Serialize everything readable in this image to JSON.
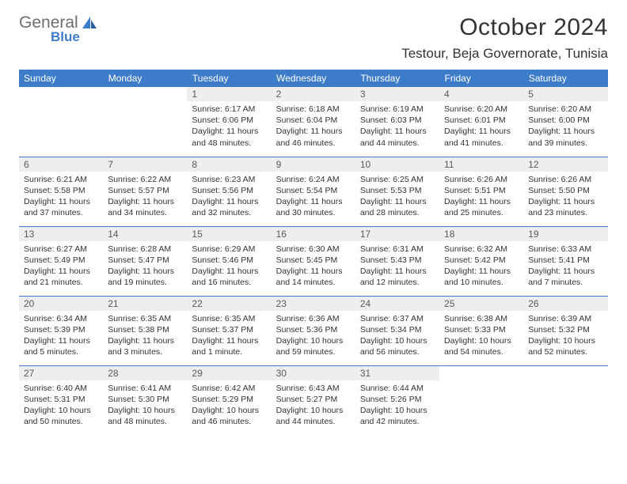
{
  "logo": {
    "line1": "General",
    "line2": "Blue"
  },
  "header": {
    "title": "October 2024",
    "location": "Testour, Beja Governorate, Tunisia"
  },
  "colors": {
    "header_bg": "#3d7cc9",
    "header_text": "#ffffff",
    "daynum_bg": "#eeeeee",
    "page_bg": "#ffffff",
    "text": "#333333",
    "logo_gray": "#6d6e71",
    "logo_blue": "#3d7cc9",
    "row_border": "#3d7cc9"
  },
  "weekdays": [
    "Sunday",
    "Monday",
    "Tuesday",
    "Wednesday",
    "Thursday",
    "Friday",
    "Saturday"
  ],
  "weeks": [
    [
      null,
      null,
      {
        "n": "1",
        "sr": "6:17 AM",
        "ss": "6:06 PM",
        "dl": "11 hours and 48 minutes."
      },
      {
        "n": "2",
        "sr": "6:18 AM",
        "ss": "6:04 PM",
        "dl": "11 hours and 46 minutes."
      },
      {
        "n": "3",
        "sr": "6:19 AM",
        "ss": "6:03 PM",
        "dl": "11 hours and 44 minutes."
      },
      {
        "n": "4",
        "sr": "6:20 AM",
        "ss": "6:01 PM",
        "dl": "11 hours and 41 minutes."
      },
      {
        "n": "5",
        "sr": "6:20 AM",
        "ss": "6:00 PM",
        "dl": "11 hours and 39 minutes."
      }
    ],
    [
      {
        "n": "6",
        "sr": "6:21 AM",
        "ss": "5:58 PM",
        "dl": "11 hours and 37 minutes."
      },
      {
        "n": "7",
        "sr": "6:22 AM",
        "ss": "5:57 PM",
        "dl": "11 hours and 34 minutes."
      },
      {
        "n": "8",
        "sr": "6:23 AM",
        "ss": "5:56 PM",
        "dl": "11 hours and 32 minutes."
      },
      {
        "n": "9",
        "sr": "6:24 AM",
        "ss": "5:54 PM",
        "dl": "11 hours and 30 minutes."
      },
      {
        "n": "10",
        "sr": "6:25 AM",
        "ss": "5:53 PM",
        "dl": "11 hours and 28 minutes."
      },
      {
        "n": "11",
        "sr": "6:26 AM",
        "ss": "5:51 PM",
        "dl": "11 hours and 25 minutes."
      },
      {
        "n": "12",
        "sr": "6:26 AM",
        "ss": "5:50 PM",
        "dl": "11 hours and 23 minutes."
      }
    ],
    [
      {
        "n": "13",
        "sr": "6:27 AM",
        "ss": "5:49 PM",
        "dl": "11 hours and 21 minutes."
      },
      {
        "n": "14",
        "sr": "6:28 AM",
        "ss": "5:47 PM",
        "dl": "11 hours and 19 minutes."
      },
      {
        "n": "15",
        "sr": "6:29 AM",
        "ss": "5:46 PM",
        "dl": "11 hours and 16 minutes."
      },
      {
        "n": "16",
        "sr": "6:30 AM",
        "ss": "5:45 PM",
        "dl": "11 hours and 14 minutes."
      },
      {
        "n": "17",
        "sr": "6:31 AM",
        "ss": "5:43 PM",
        "dl": "11 hours and 12 minutes."
      },
      {
        "n": "18",
        "sr": "6:32 AM",
        "ss": "5:42 PM",
        "dl": "11 hours and 10 minutes."
      },
      {
        "n": "19",
        "sr": "6:33 AM",
        "ss": "5:41 PM",
        "dl": "11 hours and 7 minutes."
      }
    ],
    [
      {
        "n": "20",
        "sr": "6:34 AM",
        "ss": "5:39 PM",
        "dl": "11 hours and 5 minutes."
      },
      {
        "n": "21",
        "sr": "6:35 AM",
        "ss": "5:38 PM",
        "dl": "11 hours and 3 minutes."
      },
      {
        "n": "22",
        "sr": "6:35 AM",
        "ss": "5:37 PM",
        "dl": "11 hours and 1 minute."
      },
      {
        "n": "23",
        "sr": "6:36 AM",
        "ss": "5:36 PM",
        "dl": "10 hours and 59 minutes."
      },
      {
        "n": "24",
        "sr": "6:37 AM",
        "ss": "5:34 PM",
        "dl": "10 hours and 56 minutes."
      },
      {
        "n": "25",
        "sr": "6:38 AM",
        "ss": "5:33 PM",
        "dl": "10 hours and 54 minutes."
      },
      {
        "n": "26",
        "sr": "6:39 AM",
        "ss": "5:32 PM",
        "dl": "10 hours and 52 minutes."
      }
    ],
    [
      {
        "n": "27",
        "sr": "6:40 AM",
        "ss": "5:31 PM",
        "dl": "10 hours and 50 minutes."
      },
      {
        "n": "28",
        "sr": "6:41 AM",
        "ss": "5:30 PM",
        "dl": "10 hours and 48 minutes."
      },
      {
        "n": "29",
        "sr": "6:42 AM",
        "ss": "5:29 PM",
        "dl": "10 hours and 46 minutes."
      },
      {
        "n": "30",
        "sr": "6:43 AM",
        "ss": "5:27 PM",
        "dl": "10 hours and 44 minutes."
      },
      {
        "n": "31",
        "sr": "6:44 AM",
        "ss": "5:26 PM",
        "dl": "10 hours and 42 minutes."
      },
      null,
      null
    ]
  ],
  "labels": {
    "sunrise": "Sunrise:",
    "sunset": "Sunset:",
    "daylight": "Daylight:"
  }
}
